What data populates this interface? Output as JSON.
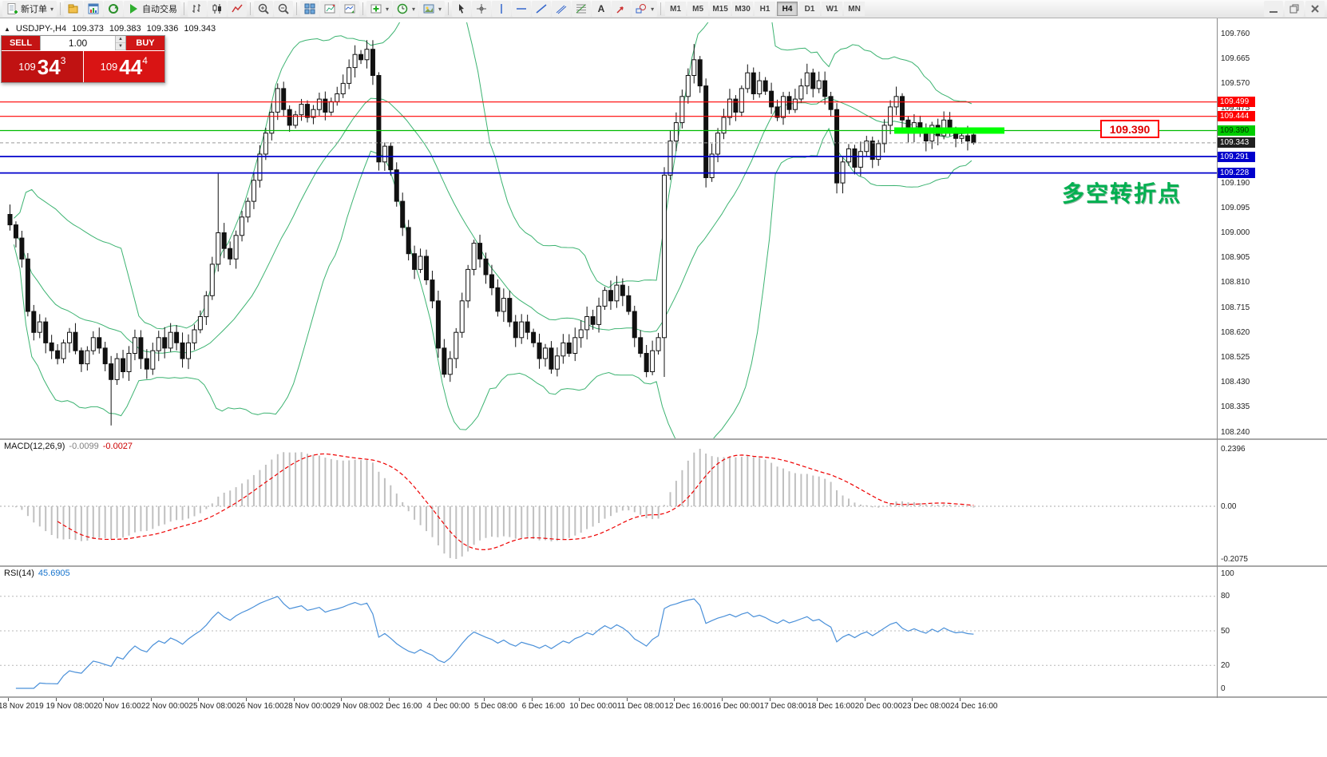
{
  "toolbar": {
    "new_order": {
      "label": "新订单",
      "name": "new-order-button",
      "icon": "new-order"
    },
    "groups": [
      [
        {
          "name": "profiles-icon",
          "icon": "profiles"
        },
        {
          "name": "charts-window-icon",
          "icon": "chart-window"
        },
        {
          "name": "refresh-icon",
          "icon": "refresh"
        },
        {
          "name": "autotrading-button",
          "icon": "play",
          "label": "自动交易"
        }
      ],
      [
        {
          "name": "bar-chart-icon",
          "icon": "bars"
        },
        {
          "name": "candlestick-chart-icon",
          "icon": "candles"
        },
        {
          "name": "line-chart-icon",
          "icon": "line"
        }
      ],
      [
        {
          "name": "zoom-in-icon",
          "icon": "zoom-in"
        },
        {
          "name": "zoom-out-icon",
          "icon": "zoom-out"
        }
      ],
      [
        {
          "name": "tile-windows-icon",
          "icon": "tile"
        },
        {
          "name": "auto-arrange-icon",
          "icon": "shift"
        },
        {
          "name": "chart-shift-icon",
          "icon": "scroll"
        }
      ],
      [
        {
          "name": "indicators-icon",
          "icon": "plus",
          "caret": true
        },
        {
          "name": "periods-icon",
          "icon": "clock",
          "caret": true
        },
        {
          "name": "templates-icon",
          "icon": "template",
          "caret": true
        }
      ],
      [
        {
          "name": "cursor-icon",
          "icon": "cursor"
        },
        {
          "name": "crosshair-icon",
          "icon": "crosshair"
        },
        {
          "name": "vertical-line-icon",
          "icon": "vline"
        },
        {
          "name": "horizontal-line-icon",
          "icon": "hline"
        },
        {
          "name": "trendline-icon",
          "icon": "trend"
        },
        {
          "name": "channel-icon",
          "icon": "channel"
        },
        {
          "name": "fibonacci-icon",
          "icon": "fibo"
        },
        {
          "name": "text-icon",
          "icon": "text"
        },
        {
          "name": "arrows-icon",
          "icon": "arrow"
        },
        {
          "name": "shapes-icon",
          "icon": "shapes",
          "caret": true
        }
      ]
    ],
    "timeframes": [
      "M1",
      "M5",
      "M15",
      "M30",
      "H1",
      "H4",
      "D1",
      "W1",
      "MN"
    ],
    "active_timeframe": "H4",
    "window_controls": [
      {
        "name": "minimize-window-icon",
        "icon": "minimize"
      },
      {
        "name": "restore-window-icon",
        "icon": "restore"
      },
      {
        "name": "close-window-icon",
        "icon": "close"
      }
    ]
  },
  "chart": {
    "symbol_info": {
      "arrow": "▲",
      "symbol": "USDJPY-,H4",
      "open": "109.373",
      "high": "109.383",
      "low": "109.336",
      "close": "109.343"
    },
    "trade_panel": {
      "sell_label": "SELL",
      "buy_label": "BUY",
      "volume": "1.00",
      "sell_prefix": "109",
      "sell_big": "34",
      "sell_sup": "3",
      "buy_prefix": "109",
      "buy_big": "44",
      "buy_sup": "4"
    },
    "annotation": {
      "text": "多空转折点",
      "color": "#00b050"
    },
    "price_note": {
      "text": "109.390"
    },
    "highlight": {
      "price": 109.39,
      "color": "#00ff00"
    },
    "levels": [
      {
        "price": 109.499,
        "text": "109.499",
        "color": "#ff0000",
        "tag_bg": "#ff0000",
        "tag_fg": "#ffffff",
        "dashed": false,
        "width": 1.2
      },
      {
        "price": 109.444,
        "text": "109.444",
        "color": "#ff0000",
        "tag_bg": "#ff0000",
        "tag_fg": "#ffffff",
        "dashed": false,
        "width": 1.2
      },
      {
        "price": 109.39,
        "text": "109.390",
        "color": "#00bb00",
        "tag_bg": "#00cc00",
        "tag_fg": "#002b00",
        "dashed": false,
        "width": 1.2
      },
      {
        "price": 109.343,
        "text": "109.343",
        "color": "#9a9a9a",
        "tag_bg": "#202020",
        "tag_fg": "#ffffff",
        "dashed": true,
        "width": 1
      },
      {
        "price": 109.291,
        "text": "109.291",
        "color": "#0000cc",
        "tag_bg": "#0000cc",
        "tag_fg": "#ffffff",
        "dashed": false,
        "width": 1.8
      },
      {
        "price": 109.228,
        "text": "109.228",
        "color": "#0000cc",
        "tag_bg": "#0000cc",
        "tag_fg": "#ffffff",
        "dashed": false,
        "width": 1.8
      }
    ],
    "y_ticks": [
      "109.760",
      "109.665",
      "109.570",
      "109.475",
      "109.380",
      "109.285",
      "109.190",
      "109.095",
      "109.000",
      "108.905",
      "108.810",
      "108.715",
      "108.620",
      "108.525",
      "108.430",
      "108.335",
      "108.240"
    ],
    "colors": {
      "band": "#3cb371",
      "candle": "#111111",
      "up_fill": "#ffffff",
      "down_fill": "#111111"
    }
  },
  "macd_panel": {
    "name": "MACD(12,26,9)",
    "main_value": "-0.0099",
    "signal_value": "-0.0027",
    "scale": [
      "0.2396",
      "0.00",
      "-0.2075"
    ],
    "hist_color": "#c0c0c0",
    "signal_color": "#ee0000"
  },
  "rsi_panel": {
    "name": "RSI(14)",
    "value": "45.6905",
    "scale": [
      "100",
      "80",
      "50",
      "20",
      "0"
    ],
    "levels": [
      80,
      50,
      20
    ],
    "line_color": "#4a90d9"
  },
  "chart_data": {
    "type": "candlestick",
    "symbol": "USDJPY",
    "timeframe": "H4",
    "open_first": 109.07,
    "closes": [
      109.03,
      108.98,
      108.9,
      108.7,
      108.62,
      108.66,
      108.58,
      108.55,
      108.52,
      108.58,
      108.62,
      108.55,
      108.5,
      108.55,
      108.6,
      108.56,
      108.5,
      108.44,
      108.52,
      108.47,
      108.54,
      108.6,
      108.52,
      108.48,
      108.55,
      108.6,
      108.56,
      108.62,
      108.58,
      108.52,
      108.58,
      108.63,
      108.68,
      108.76,
      108.88,
      109.0,
      108.94,
      108.9,
      108.99,
      109.06,
      109.12,
      109.2,
      109.3,
      109.38,
      109.46,
      109.55,
      109.47,
      109.41,
      109.45,
      109.49,
      109.44,
      109.47,
      109.51,
      109.46,
      109.5,
      109.53,
      109.57,
      109.63,
      109.68,
      109.66,
      109.7,
      109.6,
      109.27,
      109.33,
      109.24,
      109.12,
      109.02,
      108.92,
      108.86,
      108.91,
      108.82,
      108.74,
      108.56,
      108.46,
      108.52,
      108.62,
      108.74,
      108.86,
      108.96,
      108.9,
      108.84,
      108.79,
      108.7,
      108.75,
      108.66,
      108.6,
      108.66,
      108.62,
      108.58,
      108.52,
      108.56,
      108.48,
      108.53,
      108.58,
      108.54,
      108.6,
      108.63,
      108.68,
      108.65,
      108.72,
      108.78,
      108.74,
      108.8,
      108.76,
      108.7,
      108.6,
      108.54,
      108.47,
      108.55,
      108.6,
      109.22,
      109.35,
      109.42,
      109.52,
      109.6,
      109.66,
      109.56,
      109.21,
      109.3,
      109.38,
      109.44,
      109.51,
      109.46,
      109.55,
      109.61,
      109.53,
      109.58,
      109.54,
      109.48,
      109.44,
      109.52,
      109.47,
      109.51,
      109.56,
      109.61,
      109.55,
      109.58,
      109.52,
      109.47,
      109.19,
      109.27,
      109.32,
      109.25,
      109.31,
      109.35,
      109.28,
      109.34,
      109.41,
      109.48,
      109.52,
      109.43,
      109.38,
      109.42,
      109.38,
      109.35,
      109.41,
      109.37,
      109.43,
      109.39,
      109.36,
      109.37,
      109.35,
      109.343
    ],
    "overrides": {
      "17": {
        "l": 108.265
      },
      "35": {
        "h": 109.225
      },
      "60": {
        "h": 109.735
      },
      "110": {
        "l": 108.45
      },
      "115": {
        "h": 109.72
      },
      "139": {
        "l": 109.15
      },
      "162": {
        "o": 109.373,
        "h": 109.383,
        "l": 109.336,
        "c": 109.343
      }
    },
    "x_labels": [
      "18 Nov 2019",
      "19 Nov 08:00",
      "20 Nov 16:00",
      "22 Nov 00:00",
      "25 Nov 08:00",
      "26 Nov 16:00",
      "28 Nov 00:00",
      "29 Nov 08:00",
      "2 Dec 16:00",
      "4 Dec 00:00",
      "5 Dec 08:00",
      "6 Dec 16:00",
      "10 Dec 00:00",
      "11 Dec 08:00",
      "12 Dec 16:00",
      "16 Dec 00:00",
      "17 Dec 08:00",
      "18 Dec 16:00",
      "20 Dec 00:00",
      "23 Dec 08:00",
      "24 Dec 16:00"
    ],
    "indicators": {
      "bollinger": {
        "period": 20,
        "deviation": 2
      },
      "macd": {
        "fast": 12,
        "slow": 26,
        "signal": 9
      },
      "rsi": {
        "period": 14
      }
    }
  }
}
